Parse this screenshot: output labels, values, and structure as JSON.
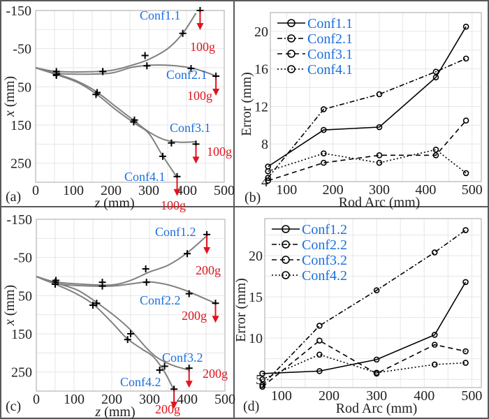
{
  "chart_data": [
    {
      "panel": "(a)",
      "type": "line",
      "title": "",
      "xlabel_var": "z",
      "xlabel_unit": " (mm)",
      "ylabel_var": "x",
      "ylabel_unit": " (mm)",
      "xlim": [
        0,
        500
      ],
      "ylim": [
        -150,
        300
      ],
      "y_reversed": true,
      "xticks": [
        0,
        100,
        200,
        300,
        400,
        500
      ],
      "yticks": [
        -150,
        -50,
        50,
        150,
        250
      ],
      "grid": true,
      "series": [
        {
          "name": "Conf1.1",
          "load": "100g",
          "curve": [
            [
              0,
              0
            ],
            [
              50,
              9
            ],
            [
              120,
              11
            ],
            [
              200,
              7
            ],
            [
              260,
              -8
            ],
            [
              300,
              -22
            ],
            [
              350,
              -50
            ],
            [
              390,
              -90
            ],
            [
              425,
              -143
            ]
          ],
          "markers": [
            [
              55,
              10
            ],
            [
              178,
              10
            ],
            [
              290,
              -32
            ],
            [
              390,
              -90
            ],
            [
              436,
              -150
            ]
          ]
        },
        {
          "name": "Conf2.1",
          "load": "100g",
          "curve": [
            [
              0,
              0
            ],
            [
              50,
              14
            ],
            [
              120,
              17
            ],
            [
              200,
              14
            ],
            [
              260,
              -2
            ],
            [
              330,
              -7
            ],
            [
              410,
              0
            ],
            [
              475,
              20
            ]
          ],
          "markers": [
            [
              55,
              15
            ],
            [
              178,
              10
            ],
            [
              295,
              -5
            ],
            [
              412,
              2
            ],
            [
              478,
              22
            ]
          ]
        },
        {
          "name": "Conf3.1",
          "load": "100g",
          "curve": [
            [
              0,
              0
            ],
            [
              55,
              16
            ],
            [
              110,
              35
            ],
            [
              160,
              62
            ],
            [
              210,
              100
            ],
            [
              260,
              138
            ],
            [
              300,
              168
            ],
            [
              340,
              188
            ],
            [
              380,
              195
            ],
            [
              425,
              194
            ]
          ],
          "markers": [
            [
              55,
              20
            ],
            [
              163,
              65
            ],
            [
              262,
              137
            ],
            [
              360,
              197
            ],
            [
              425,
              200
            ]
          ]
        },
        {
          "name": "Conf4.1",
          "load": "100g",
          "curve": [
            [
              0,
              0
            ],
            [
              55,
              18
            ],
            [
              110,
              38
            ],
            [
              160,
              68
            ],
            [
              210,
              108
            ],
            [
              260,
              144
            ],
            [
              300,
              172
            ],
            [
              335,
              228
            ],
            [
              372,
              283
            ]
          ],
          "markers": [
            [
              55,
              18
            ],
            [
              160,
              70
            ],
            [
              260,
              142
            ],
            [
              337,
              232
            ],
            [
              375,
              285
            ]
          ]
        }
      ]
    },
    {
      "panel": "(b)",
      "type": "line",
      "title": "",
      "xlabel": "Rod Arc (mm)",
      "ylabel": "Error (mm)",
      "xlim": [
        65,
        520
      ],
      "ylim": [
        4,
        22
      ],
      "xticks": [
        100,
        200,
        300,
        400,
        500
      ],
      "yticks": [
        4,
        8,
        12,
        16,
        20
      ],
      "grid": true,
      "legend": "top-left",
      "x": [
        60,
        180,
        300,
        422,
        487
      ],
      "series": [
        {
          "name": "Conf1.1",
          "style": "solid",
          "values": [
            5.6,
            9.5,
            9.8,
            15.1,
            20.5
          ]
        },
        {
          "name": "Conf2.1",
          "style": "dashdot",
          "values": [
            4.4,
            11.7,
            13.3,
            15.7,
            17.1
          ]
        },
        {
          "name": "Conf3.1",
          "style": "dashed",
          "values": [
            4.1,
            6.0,
            6.8,
            6.8,
            10.5
          ]
        },
        {
          "name": "Conf4.1",
          "style": "dotted",
          "values": [
            5.1,
            7.0,
            6.0,
            7.4,
            4.9
          ]
        }
      ]
    },
    {
      "panel": "(c)",
      "type": "line",
      "title": "",
      "xlabel_var": "z",
      "xlabel_unit": " (mm)",
      "ylabel_var": "x",
      "ylabel_unit": " (mm)",
      "xlim": [
        0,
        500
      ],
      "ylim": [
        -150,
        300
      ],
      "y_reversed": true,
      "xticks": [
        0,
        100,
        200,
        300,
        400,
        500
      ],
      "yticks": [
        -150,
        -50,
        50,
        150,
        250
      ],
      "grid": true,
      "series": [
        {
          "name": "Conf1.2",
          "load": "200g",
          "curve": [
            [
              0,
              0
            ],
            [
              50,
              14
            ],
            [
              120,
              20
            ],
            [
              200,
              22
            ],
            [
              250,
              10
            ],
            [
              300,
              -12
            ],
            [
              350,
              -30
            ],
            [
              400,
              -62
            ],
            [
              450,
              -105
            ]
          ],
          "markers": [
            [
              52,
              10
            ],
            [
              175,
              15
            ],
            [
              290,
              -20
            ],
            [
              400,
              -60
            ],
            [
              452,
              -110
            ]
          ]
        },
        {
          "name": "Conf2.2",
          "load": "200g",
          "curve": [
            [
              0,
              0
            ],
            [
              50,
              18
            ],
            [
              120,
              24
            ],
            [
              200,
              25
            ],
            [
              260,
              18
            ],
            [
              300,
              14
            ],
            [
              350,
              22
            ],
            [
              400,
              38
            ],
            [
              440,
              55
            ],
            [
              475,
              70
            ]
          ],
          "markers": [
            [
              50,
              15
            ],
            [
              175,
              25
            ],
            [
              292,
              15
            ],
            [
              405,
              45
            ],
            [
              475,
              70
            ]
          ]
        },
        {
          "name": "Conf3.2",
          "load": "200g",
          "curve": [
            [
              0,
              0
            ],
            [
              50,
              16
            ],
            [
              110,
              36
            ],
            [
              160,
              68
            ],
            [
              210,
              105
            ],
            [
              250,
              140
            ],
            [
              290,
              185
            ],
            [
              320,
              212
            ],
            [
              360,
              232
            ],
            [
              405,
              245
            ]
          ],
          "markers": [
            [
              50,
              15
            ],
            [
              160,
              70
            ],
            [
              250,
              150
            ],
            [
              340,
              235
            ],
            [
              405,
              240
            ]
          ]
        },
        {
          "name": "Conf4.2",
          "load": "200g",
          "curve": [
            [
              0,
              0
            ],
            [
              50,
              20
            ],
            [
              100,
              42
            ],
            [
              150,
              72
            ],
            [
              200,
              120
            ],
            [
              240,
              162
            ],
            [
              280,
              190
            ],
            [
              310,
              210
            ],
            [
              340,
              250
            ],
            [
              365,
              298
            ]
          ],
          "markers": [
            [
              50,
              20
            ],
            [
              150,
              75
            ],
            [
              242,
              165
            ],
            [
              327,
              245
            ],
            [
              365,
              295
            ]
          ]
        }
      ]
    },
    {
      "panel": "(d)",
      "type": "line",
      "title": "",
      "xlabel": "Rod Arc (mm)",
      "ylabel": "Error (mm)",
      "xlim": [
        65,
        520
      ],
      "ylim": [
        4,
        24.5
      ],
      "xticks": [
        100,
        200,
        300,
        400,
        500
      ],
      "yticks": [
        5,
        10,
        15,
        20
      ],
      "grid": true,
      "legend": "top-left",
      "x": [
        60,
        180,
        300,
        422,
        487
      ],
      "series": [
        {
          "name": "Conf1.2",
          "style": "solid",
          "values": [
            5.7,
            6.0,
            7.4,
            10.4,
            16.8
          ]
        },
        {
          "name": "Conf2.2",
          "style": "dashdot",
          "values": [
            4.3,
            11.5,
            15.8,
            20.4,
            23.1
          ]
        },
        {
          "name": "Conf3.2",
          "style": "dashed",
          "values": [
            4.1,
            9.7,
            5.7,
            9.2,
            8.4
          ]
        },
        {
          "name": "Conf4.2",
          "style": "dotted",
          "values": [
            5.0,
            8.0,
            5.8,
            6.8,
            7.0
          ]
        }
      ]
    }
  ]
}
